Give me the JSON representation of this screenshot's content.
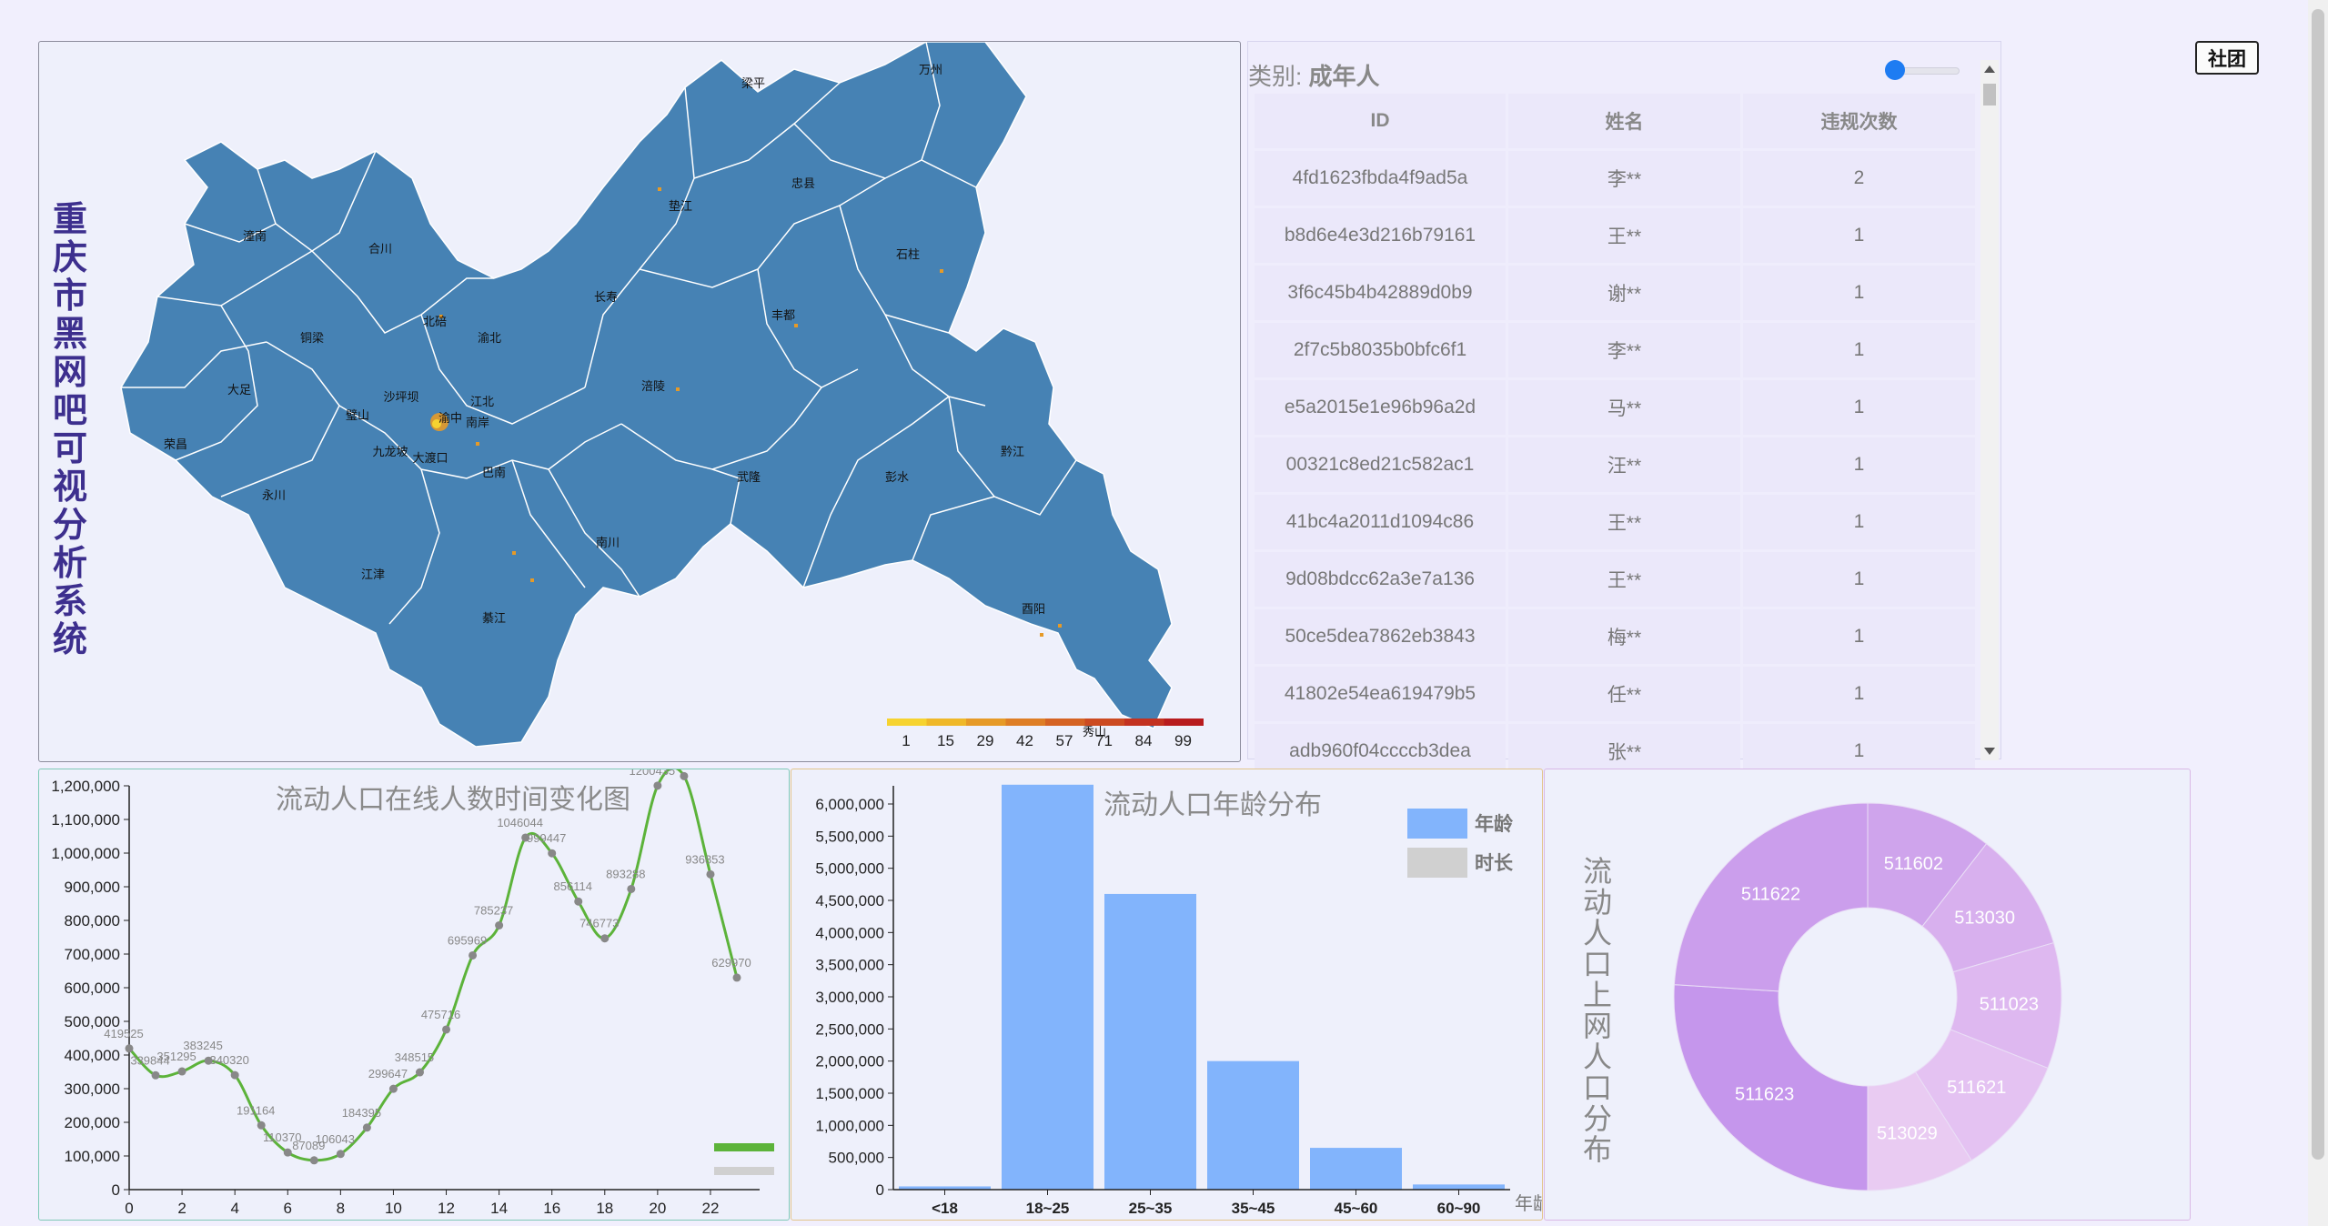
{
  "system_title": "重庆市黑网吧可视分析系统",
  "map": {
    "districts": [
      {
        "name": "梁平"
      },
      {
        "name": "万州"
      },
      {
        "name": "忠县"
      },
      {
        "name": "垫江"
      },
      {
        "name": "石柱"
      },
      {
        "name": "潼南"
      },
      {
        "name": "合川"
      },
      {
        "name": "北碚"
      },
      {
        "name": "渝北"
      },
      {
        "name": "长寿"
      },
      {
        "name": "丰都"
      },
      {
        "name": "铜梁"
      },
      {
        "name": "大足"
      },
      {
        "name": "沙坪坝"
      },
      {
        "name": "江北"
      },
      {
        "name": "渝中"
      },
      {
        "name": "南岸"
      },
      {
        "name": "涪陵"
      },
      {
        "name": "璧山"
      },
      {
        "name": "荣昌"
      },
      {
        "name": "九龙坡"
      },
      {
        "name": "大渡口"
      },
      {
        "name": "巴南"
      },
      {
        "name": "武隆"
      },
      {
        "name": "黔江"
      },
      {
        "name": "彭水"
      },
      {
        "name": "永川"
      },
      {
        "name": "南川"
      },
      {
        "name": "江津"
      },
      {
        "name": "綦江"
      },
      {
        "name": "酉阳"
      },
      {
        "name": "秀山"
      }
    ],
    "legend": {
      "labels": [
        "1",
        "15",
        "29",
        "42",
        "57",
        "71",
        "84",
        "99"
      ],
      "colors": [
        "#f6d330",
        "#efb829",
        "#e69a27",
        "#de7e25",
        "#d56323",
        "#cc4a21",
        "#c33220",
        "#b81c1e"
      ]
    },
    "fill_color": "#4682b4"
  },
  "table": {
    "category_label": "类别:",
    "category_value": "成年人",
    "columns": [
      "ID",
      "姓名",
      "违规次数"
    ],
    "rows": [
      [
        "4fd1623fbda4f9ad5a",
        "李**",
        "2"
      ],
      [
        "b8d6e4e3d216b79161",
        "王**",
        "1"
      ],
      [
        "3f6c45b4b42889d0b9",
        "谢**",
        "1"
      ],
      [
        "2f7c5b8035b0bfc6f1",
        "李**",
        "1"
      ],
      [
        "e5a2015e1e96b96a2d",
        "马**",
        "1"
      ],
      [
        "00321c8ed21c582ac1",
        "汪**",
        "1"
      ],
      [
        "41bc4a2011d1094c86",
        "王**",
        "1"
      ],
      [
        "9d08bdcc62a3e7a136",
        "王**",
        "1"
      ],
      [
        "50ce5dea7862eb3843",
        "梅**",
        "1"
      ],
      [
        "41802e54ea619479b5",
        "任**",
        "1"
      ],
      [
        "adb960f04ccccb3dea",
        "张**",
        "1"
      ]
    ]
  },
  "club_button": "社团",
  "charts": {
    "line": {
      "type": "line",
      "title": "流动人口在线人数时间变化图",
      "x": [
        0,
        1,
        2,
        3,
        4,
        5,
        6,
        7,
        8,
        9,
        10,
        11,
        12,
        13,
        14,
        15,
        16,
        17,
        18,
        19,
        20,
        21,
        22,
        23
      ],
      "values": [
        419525,
        339844,
        351295,
        383245,
        340320,
        191164,
        110370,
        87089,
        106043,
        184395,
        299647,
        348515,
        475716,
        695969,
        785237,
        1046044,
        999447,
        856114,
        746773,
        893288,
        1200435,
        1228792,
        936853,
        629970
      ],
      "ylim": [
        0,
        1200000
      ],
      "yticks": [
        "0",
        "100,000",
        "200,000",
        "300,000",
        "400,000",
        "500,000",
        "600,000",
        "700,000",
        "800,000",
        "900,000",
        "1,000,000",
        "1,100,000",
        "1,200,000"
      ],
      "xticks": [
        "0",
        "2",
        "4",
        "6",
        "8",
        "10",
        "12",
        "14",
        "16",
        "18",
        "20",
        "22"
      ],
      "line_color": "#5cb33a",
      "point_color": "#888888",
      "legend_colors": [
        "#5cb33a",
        "#d0d0d0"
      ]
    },
    "bar": {
      "type": "bar",
      "title": "流动人口年龄分布",
      "categories": [
        "<18",
        "18~25",
        "25~35",
        "35~45",
        "45~60",
        "60~90"
      ],
      "values": [
        50000,
        6300000,
        4600000,
        2000000,
        650000,
        80000
      ],
      "ylim": [
        0,
        6000000
      ],
      "yticks": [
        "0",
        "500,000",
        "1,000,000",
        "1,500,000",
        "2,000,000",
        "2,500,000",
        "3,000,000",
        "3,500,000",
        "4,000,000",
        "4,500,000",
        "5,000,000",
        "5,500,000",
        "6,000,000"
      ],
      "xlabel": "年龄",
      "bar_color": "#82b4fc",
      "legend": [
        {
          "name": "年龄",
          "color": "#82b4fc"
        },
        {
          "name": "时长",
          "color": "#d0d0d0"
        }
      ]
    },
    "pie": {
      "type": "pie",
      "title": "流动人口上网人口分布",
      "slices": [
        {
          "name": "511602",
          "value": 10.5,
          "color": "#cfa4ec"
        },
        {
          "name": "513030",
          "value": 10,
          "color": "#d8b0ee"
        },
        {
          "name": "511023",
          "value": 10.5,
          "color": "#deb8f0"
        },
        {
          "name": "511621",
          "value": 10,
          "color": "#e4c2f2"
        },
        {
          "name": "513029",
          "value": 9,
          "color": "#e9cbf2"
        },
        {
          "name": "511623",
          "value": 26,
          "color": "#c596ec"
        },
        {
          "name": "511622",
          "value": 24,
          "color": "#cb9eec"
        }
      ]
    }
  }
}
